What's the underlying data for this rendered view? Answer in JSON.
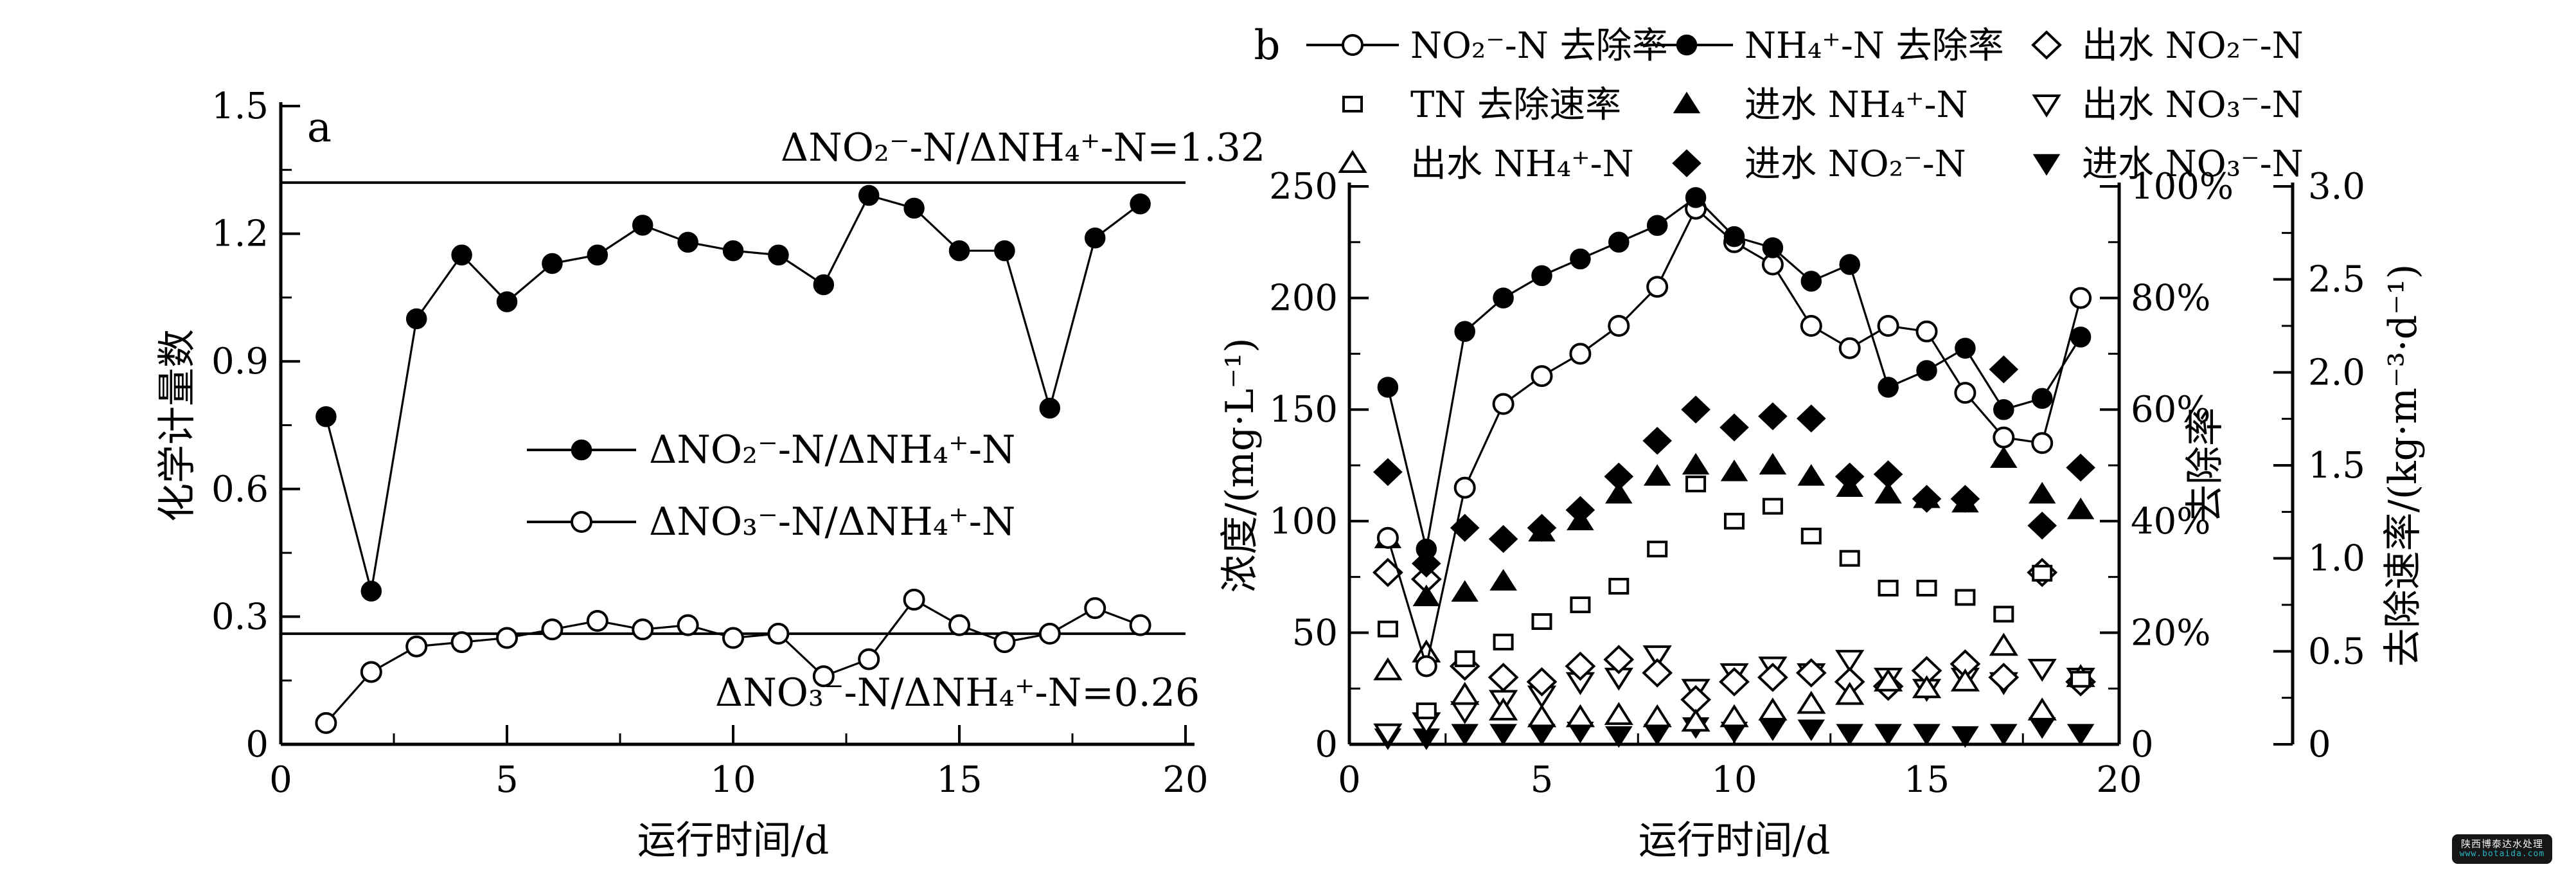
{
  "figure": {
    "watermark": {
      "line1": "陕西博泰达水处理",
      "line2": "www.botaida.com",
      "line2_color": "#25b6c5",
      "bg_color": "#161616"
    }
  },
  "chart_data": [
    {
      "id": "panel-a",
      "type": "line",
      "panel_label": "a",
      "xlabel": "运行时间/d",
      "ylabel": "化学计量数",
      "xlim": [
        0,
        20
      ],
      "ylim": [
        0,
        1.5
      ],
      "xticks": {
        "values": [
          0,
          5,
          10,
          15,
          20
        ],
        "labels": [
          "0",
          "5",
          "10",
          "15",
          "20"
        ],
        "minor_step": 2.5
      },
      "yticks": {
        "values": [
          0,
          0.3,
          0.6,
          0.9,
          1.2,
          1.5
        ],
        "labels": [
          "0",
          "0.3",
          "0.6",
          "0.9",
          "1.2",
          "1.5"
        ],
        "minor_step": 0.15
      },
      "x": [
        1,
        2,
        3,
        4,
        5,
        6,
        7,
        8,
        9,
        10,
        11,
        12,
        13,
        14,
        15,
        16,
        17,
        18,
        19
      ],
      "series": [
        {
          "key": "dno2-dnh4",
          "name": "ΔNO₂⁻-N/ΔNH₄⁺-N",
          "marker": "circle-filled",
          "line": true,
          "values": [
            0.77,
            0.36,
            1.0,
            1.15,
            1.04,
            1.13,
            1.15,
            1.22,
            1.18,
            1.16,
            1.15,
            1.08,
            1.29,
            1.26,
            1.16,
            1.16,
            0.79,
            1.19,
            1.27
          ]
        },
        {
          "key": "dno3-dnh4",
          "name": "ΔNO₃⁻-N/ΔNH₄⁺-N",
          "marker": "circle-open",
          "line": true,
          "values": [
            0.05,
            0.17,
            0.23,
            0.24,
            0.25,
            0.27,
            0.29,
            0.27,
            0.28,
            0.25,
            0.26,
            0.16,
            0.2,
            0.34,
            0.28,
            0.24,
            0.26,
            0.32,
            0.28
          ]
        }
      ],
      "ref_lines": [
        {
          "value": 1.32,
          "label": "ΔNO₂⁻-N/ΔNH₄⁺-N=1.32",
          "label_pos": "above"
        },
        {
          "value": 0.26,
          "label": "ΔNO₃⁻-N/ΔNH₄⁺-N=0.26",
          "label_pos": "below"
        }
      ],
      "legend_position": "center-right-inside",
      "grid": false
    },
    {
      "id": "panel-b",
      "type": "scatter-line",
      "panel_label": "b",
      "xlabel": "运行时间/d",
      "axes": {
        "x": {
          "lim": [
            0,
            20
          ],
          "ticks": [
            0,
            5,
            10,
            15,
            20
          ],
          "tick_labels": [
            "0",
            "5",
            "10",
            "15",
            "20"
          ],
          "minor_step": 2.5
        },
        "conc": {
          "label": "浓度/(mg·L⁻¹)",
          "lim": [
            0,
            250
          ],
          "ticks": [
            0,
            50,
            100,
            150,
            200,
            250
          ],
          "tick_labels": [
            "0",
            "50",
            "100",
            "150",
            "200",
            "250"
          ],
          "minor_step": 25
        },
        "pct": {
          "label": "去除率",
          "lim": [
            0,
            100
          ],
          "ticks": [
            0,
            20,
            40,
            60,
            80,
            100
          ],
          "tick_labels": [
            "0",
            "20%",
            "40%",
            "60%",
            "80%",
            "100%"
          ],
          "minor_step": 10
        },
        "rate": {
          "label": "去除速率/(kg·m⁻³·d⁻¹)",
          "lim": [
            0,
            3
          ],
          "ticks": [
            0,
            0.5,
            1.0,
            1.5,
            2.0,
            2.5,
            3.0
          ],
          "tick_labels": [
            "0",
            "0.5",
            "1.0",
            "1.5",
            "2.0",
            "2.5",
            "3.0"
          ],
          "minor_step": 0.25
        }
      },
      "x": [
        1,
        2,
        3,
        4,
        5,
        6,
        7,
        8,
        9,
        10,
        11,
        12,
        13,
        14,
        15,
        16,
        17,
        18,
        19
      ],
      "series": [
        {
          "key": "inf_no3",
          "name": "进水 NO₃⁻-N",
          "marker": "tridown-filled",
          "axis": "conc",
          "line": false,
          "values": [
            3,
            3,
            5,
            5,
            5,
            6,
            4,
            5,
            8,
            6,
            7,
            7,
            5,
            5,
            5,
            4,
            5,
            8,
            5
          ]
        },
        {
          "key": "eff_no3",
          "name": "出水 NO₃⁻-N",
          "marker": "tridown-open",
          "axis": "conc",
          "line": false,
          "values": [
            5,
            10,
            15,
            20,
            22,
            28,
            30,
            40,
            25,
            32,
            35,
            32,
            38,
            30,
            25,
            30,
            28,
            34,
            30
          ]
        },
        {
          "key": "eff_no2",
          "name": "出水 NO₂⁻-N",
          "marker": "diamond-open",
          "axis": "conc",
          "line": false,
          "values": [
            77,
            74,
            35,
            30,
            28,
            35,
            38,
            32,
            20,
            28,
            30,
            32,
            28,
            26,
            33,
            36,
            30,
            77,
            28
          ]
        },
        {
          "key": "eff_nh4",
          "name": "出水 NH₄⁺-N",
          "marker": "triangle-open",
          "axis": "conc",
          "line": false,
          "values": [
            33,
            41,
            22,
            15,
            12,
            12,
            13,
            12,
            10,
            12,
            15,
            18,
            22,
            28,
            25,
            28,
            44,
            15,
            30
          ]
        },
        {
          "key": "inf_nh4",
          "name": "进水 NH₄⁺-N",
          "marker": "triangle-filled",
          "axis": "conc",
          "line": false,
          "values": [
            92,
            66,
            68,
            73,
            95,
            100,
            112,
            120,
            125,
            122,
            125,
            120,
            115,
            112,
            110,
            108,
            128,
            112,
            105
          ]
        },
        {
          "key": "inf_no2",
          "name": "进水 NO₂⁻-N",
          "marker": "diamond-filled",
          "axis": "conc",
          "line": false,
          "values": [
            122,
            81,
            97,
            92,
            97,
            105,
            120,
            136,
            150,
            142,
            147,
            146,
            120,
            121,
            110,
            110,
            168,
            98,
            124
          ]
        },
        {
          "key": "tn_rate",
          "name": "TN 去除速率",
          "marker": "square-open",
          "axis": "rate",
          "line": false,
          "values": [
            0.62,
            0.18,
            0.46,
            0.55,
            0.66,
            0.75,
            0.85,
            1.05,
            1.4,
            1.2,
            1.28,
            1.12,
            1.0,
            0.84,
            0.84,
            0.79,
            0.7,
            0.92,
            0.35
          ]
        },
        {
          "key": "no2_removal",
          "name": "NO₂⁻-N 去除率",
          "marker": "circle-open",
          "axis": "pct",
          "line": true,
          "values": [
            37,
            14,
            46,
            61,
            66,
            70,
            75,
            82,
            96,
            90,
            86,
            75,
            71,
            75,
            74,
            63,
            55,
            54,
            80
          ]
        },
        {
          "key": "nh4_removal",
          "name": "NH₄⁺-N 去除率",
          "marker": "circle-filled",
          "axis": "pct",
          "line": true,
          "values": [
            64,
            35,
            74,
            80,
            84,
            87,
            90,
            93,
            98,
            91,
            89,
            83,
            86,
            64,
            67,
            71,
            60,
            62,
            73
          ]
        }
      ],
      "legend_grid": [
        [
          "no2_removal",
          "nh4_removal",
          "eff_no2"
        ],
        [
          "tn_rate",
          "inf_nh4",
          "eff_no3"
        ],
        [
          "eff_nh4",
          "inf_no2",
          "inf_no3"
        ]
      ],
      "grid": false
    }
  ]
}
